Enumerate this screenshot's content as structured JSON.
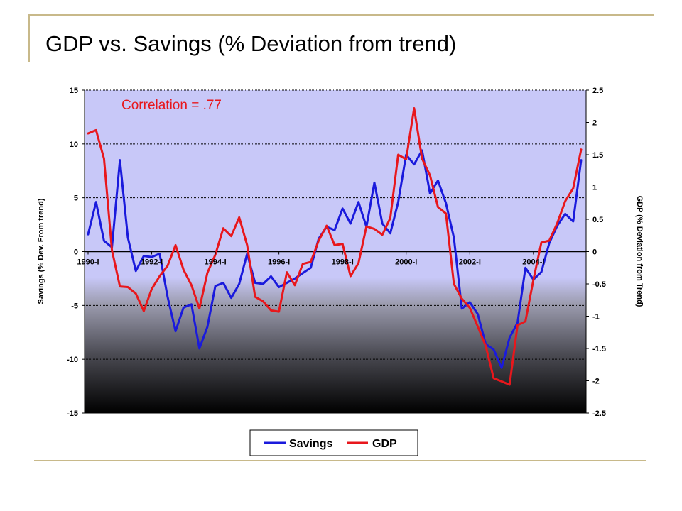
{
  "slide": {
    "title": "GDP vs. Savings (% Deviation from trend)",
    "frame_color": "#c8b98a"
  },
  "chart_data": {
    "type": "line",
    "title": "",
    "annotation": "Correlation = .77",
    "annotation_color": "#e8171c",
    "ylabel_left": "Savings (% Dev. From trend)",
    "ylabel_right": "GDP (% Deviation from Trend)",
    "ylim_left": [
      -15,
      15
    ],
    "ylim_right": [
      -2.5,
      2.5
    ],
    "yticks_left": [
      "15",
      "10",
      "5",
      "0",
      "-5",
      "-10",
      "-15"
    ],
    "yticks_right": [
      "2.5",
      "2",
      "1.5",
      "1",
      "0.5",
      "0",
      "-0.5",
      "-1",
      "-1.5",
      "-2",
      "-2.5"
    ],
    "x_tick_labels": [
      "1990-I",
      "1992-I",
      "1994-I",
      "1996-I",
      "1998-I",
      "2000-I",
      "2002-I",
      "2004-I"
    ],
    "x_tick_index": [
      0,
      8,
      16,
      24,
      32,
      40,
      48,
      56
    ],
    "grid": true,
    "legend_position": "bottom",
    "series": [
      {
        "name": "Savings",
        "axis": "left",
        "color": "#1a1adc",
        "values": [
          1.6,
          4.6,
          1.0,
          0.4,
          8.5,
          1.3,
          -1.8,
          -0.4,
          -0.5,
          -0.2,
          -4.2,
          -7.4,
          -5.2,
          -4.9,
          -9.0,
          -7.0,
          -3.2,
          -2.9,
          -4.3,
          -3.0,
          -0.2,
          -2.9,
          -3.0,
          -2.3,
          -3.3,
          -2.9,
          -2.5,
          -2.0,
          -1.5,
          1.2,
          2.3,
          2.0,
          4.0,
          2.6,
          4.6,
          2.3,
          6.4,
          2.6,
          1.7,
          4.6,
          9.0,
          8.1,
          9.4,
          5.4,
          6.6,
          4.5,
          1.3,
          -5.3,
          -4.7,
          -5.8,
          -8.6,
          -9.1,
          -10.8,
          -8.0,
          -6.6,
          -1.5,
          -2.6,
          -1.9,
          0.8,
          2.4,
          3.5,
          2.8,
          8.5
        ]
      },
      {
        "name": "GDP",
        "axis": "right",
        "color": "#e8171c",
        "values": [
          1.83,
          1.88,
          1.44,
          0.02,
          -0.54,
          -0.55,
          -0.65,
          -0.92,
          -0.58,
          -0.38,
          -0.22,
          0.1,
          -0.28,
          -0.52,
          -0.88,
          -0.33,
          -0.05,
          0.36,
          0.24,
          0.53,
          0.1,
          -0.7,
          -0.77,
          -0.91,
          -0.93,
          -0.32,
          -0.52,
          -0.19,
          -0.16,
          0.17,
          0.4,
          0.1,
          0.12,
          -0.38,
          -0.18,
          0.39,
          0.35,
          0.26,
          0.52,
          1.5,
          1.43,
          2.22,
          1.44,
          1.18,
          0.69,
          0.59,
          -0.5,
          -0.73,
          -0.87,
          -1.16,
          -1.46,
          -1.96,
          -2.01,
          -2.06,
          -1.14,
          -1.08,
          -0.44,
          0.14,
          0.17,
          0.44,
          0.78,
          0.98,
          1.58
        ]
      }
    ]
  }
}
